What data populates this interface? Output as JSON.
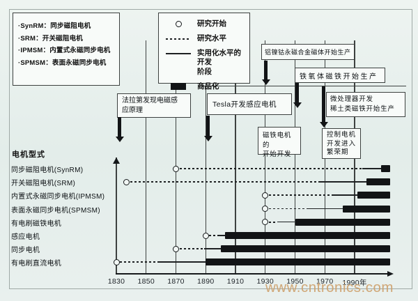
{
  "figure": {
    "y_axis_label": "电机型式",
    "watermark": "www.cntronics.com",
    "colors": {
      "background": "#e8f0ed",
      "box_background": "#f8fbf9",
      "line": "#15181a",
      "box_border": "#3c403f",
      "watermark": "#cda16c"
    }
  },
  "abbreviations": {
    "items": [
      "·SynRM：同步磁阻电机",
      "·SRM：开关磁阻电机",
      "·IPMSM：内置式永磁同步电机",
      "·SPMSM：表面永磁同步电机"
    ]
  },
  "legend": {
    "items": [
      {
        "symbol": "circle",
        "label": "研究开始"
      },
      {
        "symbol": "dashed",
        "label": "研究水平"
      },
      {
        "symbol": "solid",
        "label": "实用化水平的开发\n阶段"
      },
      {
        "symbol": "bar",
        "label": "商品化"
      }
    ]
  },
  "chart_data": {
    "type": "gantt-timeline",
    "ylabel": "电机型式",
    "x_axis": {
      "tick_years": [
        1830,
        1850,
        1870,
        1890,
        1910,
        1930,
        1950,
        1970,
        1990
      ],
      "tick_labels": [
        "1830",
        "1850",
        "1870",
        "1890",
        "1910",
        "1930",
        "1950",
        "1970",
        "1990年"
      ],
      "axis_end_year": 2014,
      "unit": "年"
    },
    "phases": [
      "研究开始",
      "研究水平",
      "实用化水平的开发阶段",
      "商品化"
    ],
    "rows": [
      {
        "label": "同步磁阻电机(SynRM)",
        "research_start": 1870,
        "research_level_until": 1995,
        "practical_dev_until": 2008,
        "commercialized_until": 2014
      },
      {
        "label": "开关磁阻电机(SRM)",
        "research_start": 1837,
        "research_level_until": 1967,
        "practical_dev_until": 1998,
        "commercialized_until": 2014
      },
      {
        "label": "内置式永磁同步电机(IPMSM)",
        "research_start": 1930,
        "research_level_until": 1975,
        "practical_dev_until": 1992,
        "commercialized_until": 2014
      },
      {
        "label": "表面永磁同步电机(SPMSM)",
        "research_start": 1930,
        "research_level_until": 1958,
        "practical_dev_until": 1982,
        "commercialized_until": 2014
      },
      {
        "label": "有电刷磁铁电机",
        "research_start": 1930,
        "research_level_until": 1938,
        "practical_dev_until": 1950,
        "commercialized_until": 2014
      },
      {
        "label": "感应电机",
        "research_start": 1890,
        "research_level_until": 1898,
        "practical_dev_until": 1903,
        "commercialized_until": 2014
      },
      {
        "label": "同步电机",
        "research_start": 1870,
        "research_level_until": 1889,
        "practical_dev_until": 1900,
        "commercialized_until": 2014
      },
      {
        "label": "有电刷直流电机",
        "research_start": 1830,
        "research_level_until": 1859,
        "practical_dev_until": 1890,
        "commercialized_until": 2014
      }
    ],
    "events": {
      "faraday": {
        "year": 1831,
        "text": "法拉第发现电磁感\n应原理"
      },
      "tesla": {
        "year": 1891,
        "text": "Tesla开发感应电机"
      },
      "alnico": {
        "year": 1930,
        "text": "铝镍钴永磁合金磁体开始生产"
      },
      "ferrite": {
        "year": 1950,
        "text": "铁氧体磁铁开始生产"
      },
      "microprocessor": {
        "year": 1970,
        "text": "微处理器开发\n稀土类磁铁开始生产"
      },
      "magnet_motor": {
        "year": 1930,
        "text": "磁铁电机的\n开始开发"
      },
      "control_motor": {
        "year": 1970,
        "text": "控制电机\n开发进入\n繁荣期"
      }
    }
  }
}
